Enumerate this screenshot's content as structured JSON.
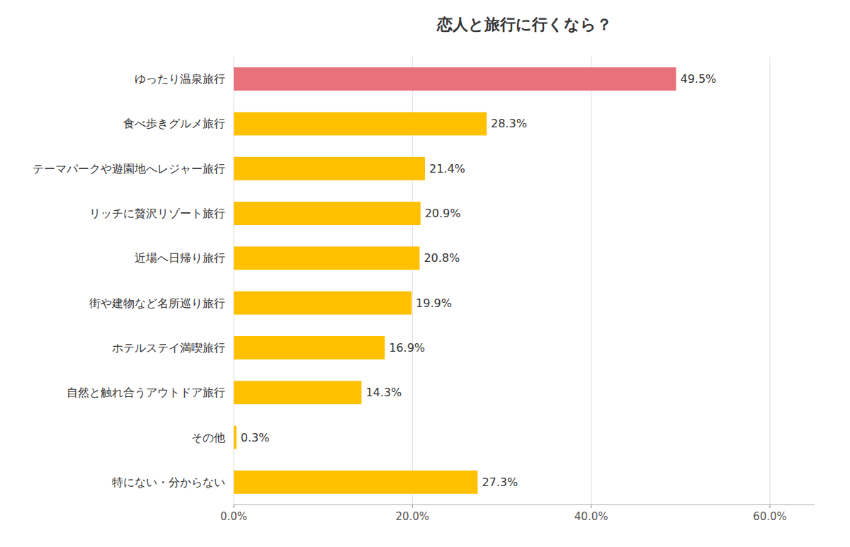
{
  "chart_data": {
    "type": "bar",
    "orientation": "horizontal",
    "title": "恋人と旅行に行くなら？",
    "categories": [
      "特にない・分からない",
      "その他",
      "自然と触れ合うアウトドア旅行",
      "ホテルステイ満喫旅行",
      "街や建物など名所巡り旅行",
      "近場へ日帰り旅行",
      "リッチに贅沢リゾート旅行",
      "テーマパークや遊園地へレジャー旅行",
      "食べ歩きグルメ旅行",
      "ゆったり温泉旅行"
    ],
    "values": [
      27.3,
      0.3,
      14.3,
      16.9,
      19.9,
      20.8,
      20.9,
      21.4,
      28.3,
      49.5
    ],
    "value_labels": [
      "27.3%",
      "0.3%",
      "14.3%",
      "16.9%",
      "19.9%",
      "20.8%",
      "20.9%",
      "21.4%",
      "28.3%",
      "49.5%"
    ],
    "colors": [
      "#FFC000",
      "#FFC000",
      "#FFC000",
      "#FFC000",
      "#FFC000",
      "#FFC000",
      "#FFC000",
      "#FFC000",
      "#FFC000",
      "#E8717B"
    ],
    "xlim": [
      0,
      65
    ],
    "xticks": [
      {
        "value": 0,
        "label": "0.0%"
      },
      {
        "value": 20,
        "label": "20.0%"
      },
      {
        "value": 40,
        "label": "40.0%"
      },
      {
        "value": 60,
        "label": "60.0%"
      }
    ],
    "grid": true,
    "data_labels": true
  }
}
